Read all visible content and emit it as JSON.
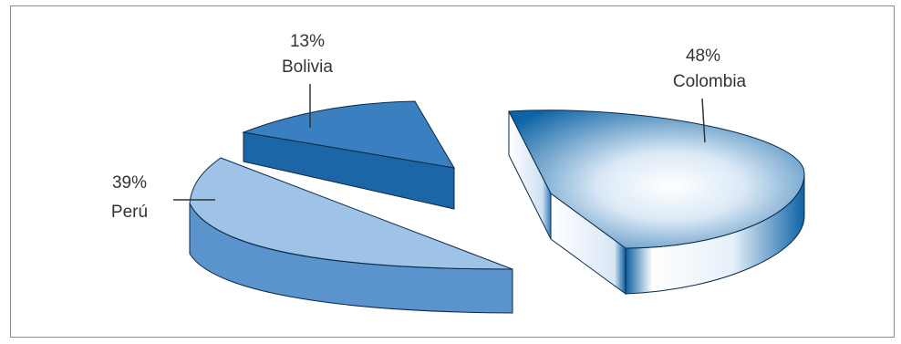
{
  "chart_data": {
    "type": "pie",
    "title": "",
    "slices": [
      {
        "label": "Colombia",
        "value": 48,
        "percent_label": "48%"
      },
      {
        "label": "Perú",
        "value": 39,
        "percent_label": "39%"
      },
      {
        "label": "Bolivia",
        "value": 13,
        "percent_label": "13%"
      }
    ],
    "exploded": true,
    "legend": "none",
    "colors": {
      "colombia_top_center": "#ffffff",
      "colombia_top_edge": "#0d63a5",
      "colombia_side_light": "#f2f7fc",
      "colombia_side_dark": "#0d5f9f",
      "peru_top": "#9fc3e6",
      "peru_side": "#5b93cc",
      "bolivia_top": "#3a7fbf",
      "bolivia_side": "#1c65a6",
      "outline": "#0b2a4a"
    }
  }
}
